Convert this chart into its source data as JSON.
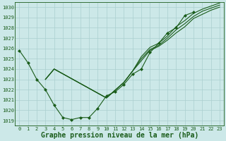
{
  "title": "Graphe pression niveau de la mer (hPa)",
  "background_color": "#cce8e8",
  "grid_color": "#aacfcf",
  "line_color": "#1a5c1a",
  "xlim": [
    -0.5,
    23.5
  ],
  "ylim": [
    1018.5,
    1030.5
  ],
  "yticks": [
    1019,
    1020,
    1021,
    1022,
    1023,
    1024,
    1025,
    1026,
    1027,
    1028,
    1029,
    1030
  ],
  "xticks": [
    0,
    1,
    2,
    3,
    4,
    5,
    6,
    7,
    8,
    9,
    10,
    11,
    12,
    13,
    14,
    15,
    16,
    17,
    18,
    19,
    20,
    21,
    22,
    23
  ],
  "series": [
    {
      "x": [
        0,
        1,
        2,
        3,
        4,
        5,
        6,
        7,
        8,
        9,
        10,
        11,
        12,
        13,
        14,
        15,
        16,
        17,
        18,
        19,
        20
      ],
      "y": [
        1025.8,
        1024.6,
        1023.0,
        1022.0,
        1020.5,
        1019.3,
        1019.1,
        1019.3,
        1019.3,
        1020.2,
        1021.4,
        1021.8,
        1022.5,
        1023.5,
        1024.0,
        1025.6,
        1026.5,
        1027.5,
        1028.0,
        1029.2,
        1029.5
      ],
      "marker": true
    },
    {
      "x": [
        3,
        4,
        10,
        12,
        13,
        14,
        15,
        16,
        17,
        18,
        19,
        20,
        21,
        22,
        23
      ],
      "y": [
        1023.0,
        1024.0,
        1021.2,
        1022.7,
        1023.8,
        1024.8,
        1025.8,
        1026.2,
        1026.8,
        1027.5,
        1028.1,
        1028.9,
        1029.3,
        1029.7,
        1030.0
      ],
      "marker": false
    },
    {
      "x": [
        3,
        4,
        10,
        12,
        13,
        14,
        15,
        16,
        17,
        18,
        19,
        20,
        21,
        22,
        23
      ],
      "y": [
        1023.0,
        1024.0,
        1021.2,
        1022.7,
        1023.8,
        1025.0,
        1025.9,
        1026.3,
        1027.0,
        1027.8,
        1028.4,
        1029.1,
        1029.6,
        1029.9,
        1030.2
      ],
      "marker": false
    },
    {
      "x": [
        3,
        4,
        10,
        12,
        13,
        14,
        15,
        16,
        17,
        18,
        19,
        20,
        21,
        22,
        23
      ],
      "y": [
        1023.0,
        1024.0,
        1021.2,
        1022.7,
        1023.8,
        1025.2,
        1026.1,
        1026.5,
        1027.2,
        1028.1,
        1028.7,
        1029.4,
        1029.8,
        1030.1,
        1030.4
      ],
      "marker": false
    }
  ],
  "marker_symbol": "D",
  "marker_size": 2.0,
  "linewidth": 0.8,
  "title_fontsize": 7.0,
  "tick_fontsize": 5.0
}
